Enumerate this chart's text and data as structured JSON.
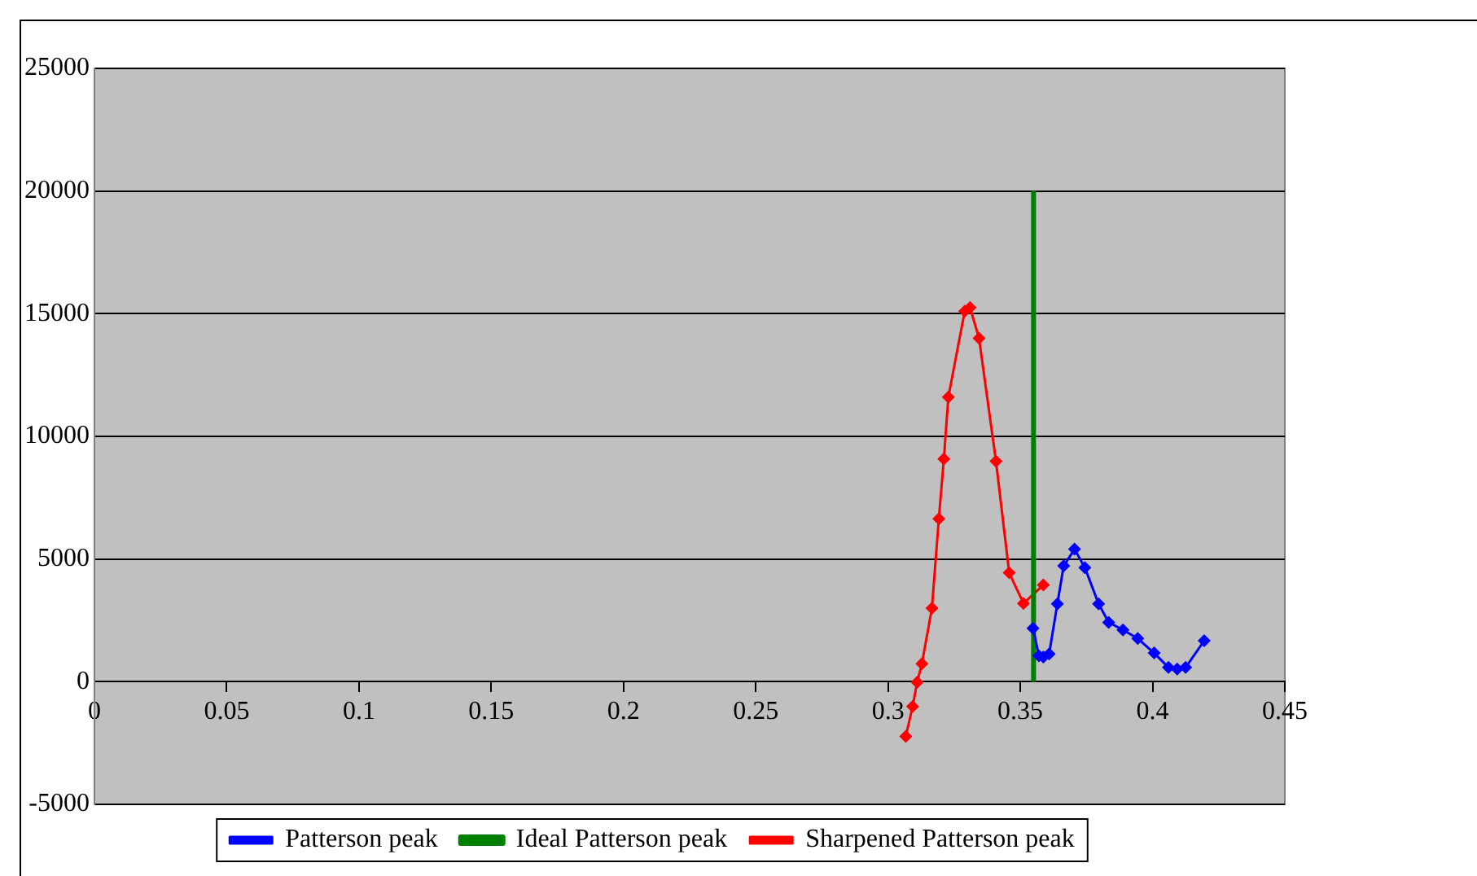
{
  "chart_data": {
    "type": "line",
    "marker": "diamond",
    "line_style": "solid",
    "grid": "y",
    "legend": "bottom",
    "xlim": [
      0,
      0.45
    ],
    "xticks": [
      0,
      0.05,
      0.1,
      0.15,
      0.2,
      0.25,
      0.3,
      0.35,
      0.4,
      0.45
    ],
    "ylim": [
      -5000,
      25000
    ],
    "yticks": [
      -5000,
      0,
      5000,
      10000,
      15000,
      20000,
      25000
    ],
    "series": [
      {
        "name": "Patterson peak",
        "color": "#0000ff",
        "x": [
          0.3548,
          0.357,
          0.3587,
          0.3609,
          0.364,
          0.3664,
          0.3705,
          0.3744,
          0.3796,
          0.3834,
          0.3888,
          0.3944,
          0.4006,
          0.406,
          0.4093,
          0.4125,
          0.4195
        ],
        "values": [
          2180,
          1060,
          1010,
          1130,
          3170,
          4720,
          5400,
          4650,
          3170,
          2420,
          2110,
          1760,
          1170,
          580,
          520,
          580,
          1670
        ]
      },
      {
        "name": "Ideal Patterson peak",
        "color": "#008000",
        "marker": "none",
        "x": [
          0.355,
          0.355
        ],
        "values": [
          0,
          20000
        ]
      },
      {
        "name": "Sharpened Patterson peak",
        "color": "#ff0000",
        "x": [
          0.3067,
          0.3093,
          0.311,
          0.3128,
          0.3166,
          0.3192,
          0.3211,
          0.3228,
          0.329,
          0.331,
          0.3344,
          0.3408,
          0.3458,
          0.3512,
          0.3587
        ],
        "values": [
          -2230,
          -1010,
          -20,
          730,
          3000,
          6640,
          9080,
          11600,
          15100,
          15250,
          14000,
          8990,
          4440,
          3190,
          3940
        ]
      }
    ]
  }
}
